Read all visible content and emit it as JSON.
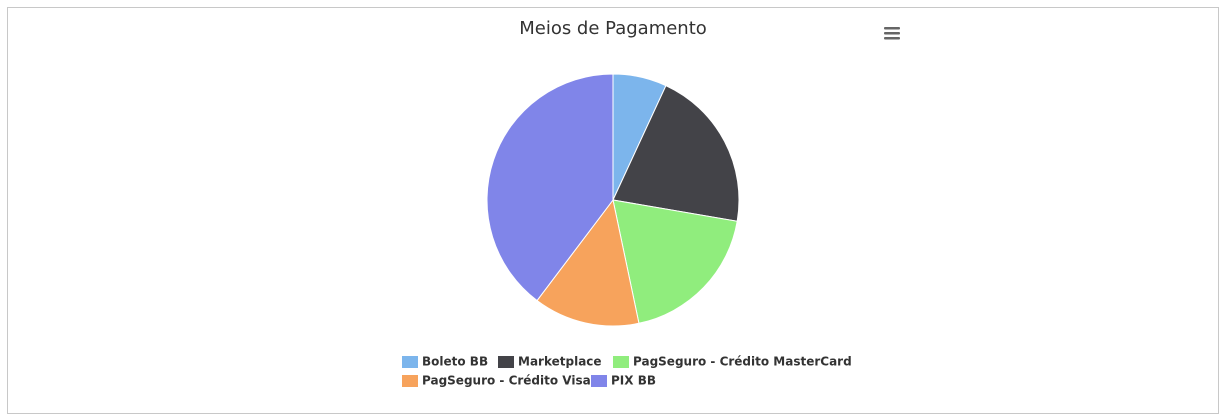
{
  "chart_data": {
    "type": "pie",
    "title": "Meios de Pagamento",
    "categories": [
      "Boleto BB",
      "Marketplace",
      "PagSeguro - Crédito MasterCard",
      "PagSeguro - Crédito Visa",
      "PIX BB"
    ],
    "values": [
      6.9,
      20.8,
      19,
      13.6,
      39.7
    ],
    "colors": [
      "#7cb5ec",
      "#434348",
      "#90ed7d",
      "#f7a35c",
      "#8085e9"
    ],
    "legend": "bottom"
  }
}
